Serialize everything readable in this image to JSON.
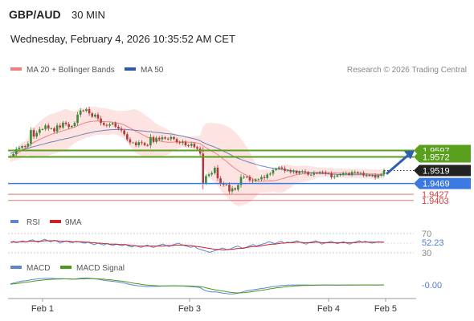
{
  "header": {
    "symbol": "GBP/AUD",
    "timeframe": "30 MIN",
    "datetime": "Wednesday, February 4, 2026 10:35:52 AM CET"
  },
  "legend": {
    "ma20_label": "MA 20 + Bollinger Bands",
    "ma20_color": "#f08080",
    "ma50_label": "MA 50",
    "ma50_color": "#2e5aa8",
    "credit": "Research © 2026 Trading Central"
  },
  "colors": {
    "up": "#3a8a3a",
    "down": "#b03a3a",
    "green_level": "#5aa01e",
    "blue_level": "#3b78e0",
    "red_level": "#e57373",
    "band_fill": "#fde3e1",
    "rsi": "#5b86d6",
    "rsi_ma": "#cc2222",
    "macd": "#5b86d6",
    "macd_signal": "#4c9a16",
    "arrow": "#2f5fb0"
  },
  "chart_data": [
    {
      "type": "candlestick",
      "x": [
        "Feb 1",
        "Feb 3",
        "Feb 4",
        "Feb 5"
      ],
      "ylim": [
        1.9365,
        1.9885
      ],
      "closes": [
        1.9575,
        1.9583,
        1.9602,
        1.9607,
        1.9614,
        1.9612,
        1.9623,
        1.9676,
        1.9651,
        1.9665,
        1.9679,
        1.968,
        1.9694,
        1.9682,
        1.9683,
        1.9671,
        1.9694,
        1.9686,
        1.9705,
        1.9699,
        1.9688,
        1.9692,
        1.9704,
        1.9736,
        1.9752,
        1.9751,
        1.9757,
        1.9741,
        1.9728,
        1.9736,
        1.9721,
        1.9704,
        1.9696,
        1.9693,
        1.9698,
        1.9703,
        1.9689,
        1.9682,
        1.9675,
        1.966,
        1.964,
        1.9628,
        1.9628,
        1.9617,
        1.9629,
        1.9626,
        1.9618,
        1.9617,
        1.9649,
        1.963,
        1.9646,
        1.964,
        1.9648,
        1.9643,
        1.9641,
        1.9649,
        1.9641,
        1.9629,
        1.9626,
        1.9631,
        1.9617,
        1.9615,
        1.9623,
        1.961,
        1.9604,
        1.9585,
        1.9471,
        1.9498,
        1.9504,
        1.9509,
        1.953,
        1.9489,
        1.9468,
        1.9464,
        1.9464,
        1.9438,
        1.945,
        1.9445,
        1.9463,
        1.9494,
        1.9495,
        1.9494,
        1.9481,
        1.9478,
        1.9485,
        1.9485,
        1.9494,
        1.949,
        1.9504,
        1.9507,
        1.9521,
        1.9526,
        1.9531,
        1.9527,
        1.9518,
        1.952,
        1.9513,
        1.9517,
        1.9508,
        1.9514,
        1.9516,
        1.9512,
        1.9503,
        1.9503,
        1.951,
        1.9509,
        1.9513,
        1.9511,
        1.9508,
        1.9508,
        1.9493,
        1.9496,
        1.9501,
        1.9504,
        1.9509,
        1.9509,
        1.9503,
        1.9513,
        1.9513,
        1.9509,
        1.951,
        1.9501,
        1.9501,
        1.95,
        1.95,
        1.9492,
        1.95,
        1.9504,
        1.9519
      ],
      "ma20": [
        1.957,
        1.9575,
        1.9582,
        1.959,
        1.9598,
        1.9605,
        1.9612,
        1.9622,
        1.9628,
        1.9634,
        1.964,
        1.9645,
        1.965,
        1.9655,
        1.966,
        1.9663,
        1.9667,
        1.967,
        1.9674,
        1.9677,
        1.968,
        1.9684,
        1.9688,
        1.9693,
        1.9698,
        1.9702,
        1.9706,
        1.9708,
        1.971,
        1.9711,
        1.9711,
        1.971,
        1.9709,
        1.9708,
        1.9708,
        1.9707,
        1.9705,
        1.9703,
        1.97,
        1.9696,
        1.969,
        1.9684,
        1.9678,
        1.9671,
        1.9666,
        1.966,
        1.9654,
        1.9648,
        1.9645,
        1.964,
        1.9637,
        1.9634,
        1.9632,
        1.963,
        1.9629,
        1.9629,
        1.963,
        1.963,
        1.963,
        1.9631,
        1.963,
        1.9629,
        1.9629,
        1.9628,
        1.9626,
        1.9623,
        1.9615,
        1.9608,
        1.9601,
        1.9594,
        1.9589,
        1.9581,
        1.9572,
        1.9563,
        1.9555,
        1.9545,
        1.9536,
        1.9527,
        1.9519,
        1.9512,
        1.9506,
        1.95,
        1.9494,
        1.9487,
        1.9481,
        1.9476,
        1.9478,
        1.9478,
        1.9479,
        1.9479,
        1.9479,
        1.9481,
        1.9484,
        1.9487,
        1.949,
        1.9494,
        1.9496,
        1.95,
        1.9503,
        1.9505,
        1.9506,
        1.9507,
        1.9508,
        1.9509,
        1.951,
        1.9511,
        1.9512,
        1.9512,
        1.9512,
        1.9512,
        1.9511,
        1.951,
        1.9509,
        1.9509,
        1.9509,
        1.9508,
        1.9508,
        1.9508,
        1.9508,
        1.9508,
        1.9507,
        1.9507,
        1.9507,
        1.9506,
        1.9506,
        1.9505,
        1.9505,
        1.9505,
        1.9506
      ],
      "ma50": [
        1.9586,
        1.9589,
        1.9592,
        1.9596,
        1.9599,
        1.9602,
        1.9605,
        1.9609,
        1.9612,
        1.9615,
        1.9618,
        1.9621,
        1.9624,
        1.9627,
        1.963,
        1.9632,
        1.9635,
        1.9638,
        1.964,
        1.9643,
        1.9645,
        1.9648,
        1.9651,
        1.9654,
        1.9657,
        1.966,
        1.9663,
        1.9665,
        1.9668,
        1.967,
        1.9672,
        1.9673,
        1.9675,
        1.9676,
        1.9677,
        1.9678,
        1.9678,
        1.9679,
        1.9679,
        1.9679,
        1.9678,
        1.9677,
        1.9676,
        1.9675,
        1.9674,
        1.9673,
        1.9672,
        1.967,
        1.967,
        1.9668,
        1.9667,
        1.9666,
        1.9665,
        1.9663,
        1.9662,
        1.9661,
        1.9659,
        1.9657,
        1.9655,
        1.9653,
        1.965,
        1.9647,
        1.9645,
        1.9642,
        1.9639,
        1.9635,
        1.9628,
        1.9623,
        1.9618,
        1.9614,
        1.961,
        1.9605,
        1.96,
        1.9594,
        1.9589,
        1.9583,
        1.9577,
        1.9571,
        1.9566,
        1.9562,
        1.9558,
        1.9554,
        1.955,
        1.9547,
        1.9543,
        1.954,
        1.9537,
        1.9535,
        1.9532,
        1.953,
        1.9528,
        1.9527,
        1.9525,
        1.9524,
        1.9522,
        1.9521,
        1.9519,
        1.9518,
        1.9517,
        1.9516,
        1.9514,
        1.9513,
        1.9512,
        1.9511,
        1.951,
        1.9509,
        1.9508,
        1.9507,
        1.9507,
        1.9506,
        1.9505,
        1.9505,
        1.9504,
        1.9504,
        1.9503,
        1.9503,
        1.9503,
        1.9503,
        1.9503,
        1.9503,
        1.9503,
        1.9502,
        1.9502,
        1.9502,
        1.9501,
        1.9501,
        1.9501,
        1.9501,
        1.9501
      ],
      "resistance_levels": [
        1.9597,
        1.9572
      ],
      "current_price": 1.9519,
      "support_levels": [
        1.9469,
        1.9427,
        1.9403
      ],
      "level_labels": {
        "r1": "1.9597",
        "r2": "1.9572",
        "current": "1.9519",
        "s1": "1.9469",
        "s2": "1.9427",
        "s3": "1.9403"
      },
      "target_arrow": {
        "from": 1.9506,
        "to": 1.9597
      }
    },
    {
      "type": "line",
      "name": "RSI panel",
      "legend": [
        "RSI",
        "9MA"
      ],
      "levels": [
        70,
        30
      ],
      "level_labels": {
        "upper": "70",
        "lower": "30"
      },
      "ylim": [
        25,
        75
      ],
      "last_value_label": "52.23",
      "rsi": [
        52,
        54,
        51,
        53,
        55,
        52,
        55,
        57,
        54,
        52,
        56,
        58,
        55,
        53,
        56,
        54,
        50,
        53,
        55,
        52,
        51,
        54,
        53,
        51,
        50,
        52,
        49,
        47,
        50,
        48,
        46,
        49,
        47,
        45,
        48,
        46,
        45,
        47,
        44,
        42,
        45,
        43,
        41,
        44,
        46,
        43,
        41,
        44,
        46,
        48,
        45,
        43,
        46,
        48,
        50,
        47,
        45,
        43,
        41,
        44,
        39,
        37,
        35,
        33,
        31,
        33,
        35,
        37,
        40,
        38,
        36,
        39,
        42,
        44,
        41,
        39,
        42,
        45,
        47,
        44,
        46,
        48,
        50,
        53,
        51,
        49,
        52,
        54,
        50,
        52,
        51,
        53,
        55,
        52,
        50,
        48,
        51,
        53,
        55,
        52,
        48,
        50,
        52,
        54,
        51,
        49,
        51,
        53,
        50,
        48,
        51,
        53,
        55,
        52,
        54,
        52,
        50,
        51,
        53,
        52,
        52
      ],
      "ma9": [
        52,
        52,
        52,
        53,
        53,
        53,
        54,
        54,
        54,
        54,
        54,
        55,
        55,
        55,
        55,
        55,
        54,
        54,
        54,
        54,
        53,
        53,
        53,
        53,
        52,
        52,
        51,
        51,
        50,
        50,
        49,
        49,
        48,
        48,
        48,
        47,
        47,
        47,
        46,
        45,
        45,
        44,
        44,
        44,
        44,
        44,
        44,
        44,
        44,
        44,
        45,
        45,
        45,
        46,
        46,
        46,
        46,
        45,
        45,
        44,
        43,
        42,
        41,
        40,
        39,
        38,
        37,
        37,
        36,
        36,
        37,
        37,
        38,
        39,
        39,
        40,
        41,
        42,
        43,
        43,
        44,
        45,
        46,
        47,
        48,
        48,
        49,
        50,
        50,
        51,
        51,
        51,
        52,
        52,
        51,
        51,
        51,
        51,
        52,
        52,
        51,
        51,
        51,
        51,
        51,
        51,
        51,
        51,
        51,
        51,
        51,
        51,
        52,
        52,
        52,
        52,
        52,
        52,
        52,
        52,
        52
      ]
    },
    {
      "type": "line",
      "name": "MACD panel",
      "legend": [
        "MACD",
        "MACD Signal"
      ],
      "ylim": [
        -0.006,
        0.005
      ],
      "last_value_label": "-0.00",
      "macd": [
        0.0005,
        0.001,
        0.0014,
        0.0018,
        0.0021,
        0.0023,
        0.0025,
        0.0029,
        0.0031,
        0.0033,
        0.0035,
        0.0036,
        0.0037,
        0.0037,
        0.0037,
        0.0036,
        0.0035,
        0.0035,
        0.0035,
        0.0034,
        0.0033,
        0.0032,
        0.0033,
        0.0035,
        0.0037,
        0.0038,
        0.0039,
        0.0038,
        0.0036,
        0.0034,
        0.0032,
        0.0029,
        0.0026,
        0.0024,
        0.0022,
        0.002,
        0.0018,
        0.0016,
        0.0013,
        0.001,
        0.0006,
        0.0002,
        -0.0001,
        -0.0004,
        -0.0006,
        -0.0007,
        -0.0009,
        -0.001,
        -0.0009,
        -0.0009,
        -0.0008,
        -0.0008,
        -0.0007,
        -0.0007,
        -0.0006,
        -0.0005,
        -0.0005,
        -0.0005,
        -0.0006,
        -0.0006,
        -0.0008,
        -0.0009,
        -0.001,
        -0.0012,
        -0.0013,
        -0.0016,
        -0.0027,
        -0.0034,
        -0.0038,
        -0.0041,
        -0.004,
        -0.0042,
        -0.0045,
        -0.0048,
        -0.005,
        -0.0052,
        -0.0052,
        -0.0051,
        -0.0048,
        -0.0043,
        -0.0038,
        -0.0034,
        -0.0031,
        -0.0029,
        -0.0026,
        -0.0024,
        -0.0021,
        -0.0019,
        -0.0016,
        -0.0013,
        -0.001,
        -0.0008,
        -0.0006,
        -0.0004,
        -0.0003,
        -0.0002,
        -0.0002,
        -0.0001,
        -0.0001,
        -0.0001,
        -0.0001,
        -0.0001,
        -0.0001,
        -0.0002,
        -0.0002,
        -0.0002,
        -0.0001,
        -0.0001,
        -0.0001,
        -0.0001,
        -0.0002,
        -0.0002,
        -0.0002,
        -0.0002,
        -0.0001,
        -0.0001,
        -0.0001,
        -0.0001,
        -0.0001,
        -0.0001,
        -0.0001,
        -0.0001,
        -0.0001,
        -0.0001,
        -0.0001,
        -0.0002,
        -0.0001,
        -0.0001,
        0.0
      ],
      "signal": [
        0.0003,
        0.0005,
        0.0007,
        0.0009,
        0.0012,
        0.0014,
        0.0016,
        0.0018,
        0.0021,
        0.0023,
        0.0025,
        0.0027,
        0.0029,
        0.003,
        0.0031,
        0.0032,
        0.0033,
        0.0033,
        0.0034,
        0.0034,
        0.0034,
        0.0033,
        0.0033,
        0.0033,
        0.0034,
        0.0034,
        0.0035,
        0.0035,
        0.0035,
        0.0035,
        0.0034,
        0.0033,
        0.0032,
        0.003,
        0.0029,
        0.0027,
        0.0025,
        0.0023,
        0.0021,
        0.0019,
        0.0016,
        0.0013,
        0.001,
        0.0007,
        0.0005,
        0.0002,
        0.0,
        -0.0002,
        -0.0003,
        -0.0004,
        -0.0005,
        -0.0006,
        -0.0006,
        -0.0006,
        -0.0006,
        -0.0006,
        -0.0006,
        -0.0006,
        -0.0006,
        -0.0006,
        -0.0006,
        -0.0007,
        -0.0007,
        -0.0008,
        -0.0009,
        -0.001,
        -0.0013,
        -0.0017,
        -0.0021,
        -0.0025,
        -0.0028,
        -0.0031,
        -0.0034,
        -0.0036,
        -0.0039,
        -0.0042,
        -0.0044,
        -0.0046,
        -0.0046,
        -0.0046,
        -0.0045,
        -0.0043,
        -0.0041,
        -0.0039,
        -0.0036,
        -0.0034,
        -0.0031,
        -0.0029,
        -0.0026,
        -0.0023,
        -0.0021,
        -0.0018,
        -0.0016,
        -0.0014,
        -0.0012,
        -0.001,
        -0.0009,
        -0.0007,
        -0.0006,
        -0.0005,
        -0.0004,
        -0.0004,
        -0.0003,
        -0.0003,
        -0.0003,
        -0.0002,
        -0.0002,
        -0.0002,
        -0.0002,
        -0.0002,
        -0.0002,
        -0.0002,
        -0.0002,
        -0.0002,
        -0.0002,
        -0.0002,
        -0.0002,
        -0.0002,
        -0.0001,
        -0.0001,
        -0.0001,
        -0.0001,
        -0.0001,
        -0.0001,
        -0.0001,
        -0.0001,
        -0.0001,
        -0.0001,
        -0.0001
      ]
    }
  ]
}
